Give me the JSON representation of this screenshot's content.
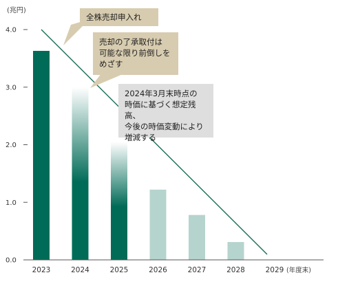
{
  "chart_data": {
    "type": "bar",
    "title": "",
    "unit_label": "(兆円)",
    "x_unit_label": "(年度末)",
    "categories": [
      "2023",
      "2024",
      "2025",
      "2026",
      "2027",
      "2028",
      "2029"
    ],
    "values": [
      3.63,
      3.0,
      2.05,
      1.22,
      0.78,
      0.31,
      null
    ],
    "ylim": [
      0,
      4.0
    ],
    "yticks": [
      "4.0",
      "3.0",
      "2.0",
      "1.0",
      "0.0"
    ],
    "trend_line": {
      "from": {
        "x": "2023",
        "y": 4.0
      },
      "to": {
        "x": "2029",
        "y": 0.0
      }
    },
    "colors": {
      "actual": "#006b57",
      "forecast": "#b6d4ce",
      "line": "#1a6e58",
      "axis": "#555555",
      "callout_beige": "#d8ccb0",
      "callout_gray": "#dedede"
    },
    "annotations": [
      {
        "id": "callout1",
        "text": "全株売却申入れ"
      },
      {
        "id": "callout2",
        "text": "売却の了承取付は\n可能な限り前倒しを\nめざす"
      },
      {
        "id": "callout3",
        "text": "2024年3月末時点の\n時価に基づく想定残高、\n今後の時価変動により\n増減する"
      }
    ]
  }
}
